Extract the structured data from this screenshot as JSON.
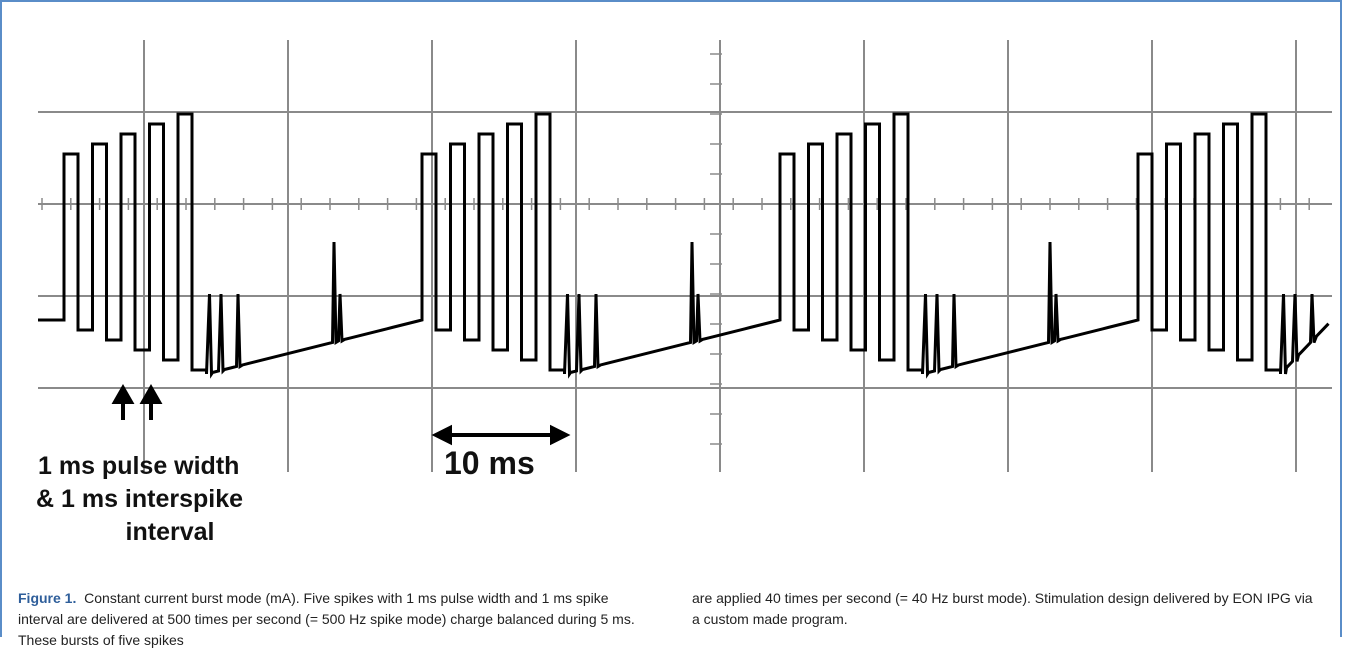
{
  "figure": {
    "annotations": {
      "pulse_line_1": "1 ms pulse width",
      "pulse_line_2": "& 1 ms interspike",
      "pulse_line_3": "interval",
      "scale": "10 ms"
    },
    "caption": {
      "label": "Figure 1.",
      "column_1": "Constant current burst mode (mA). Five spikes with 1 ms pulse width and 1 ms spike interval are delivered at 500 times per second (= 500 Hz spike mode) charge balanced during 5 ms. These bursts of five spikes",
      "column_2": "are applied 40 times per second (= 40 Hz burst mode). Stimulation design delivered by EON IPG via a custom made program."
    }
  }
}
